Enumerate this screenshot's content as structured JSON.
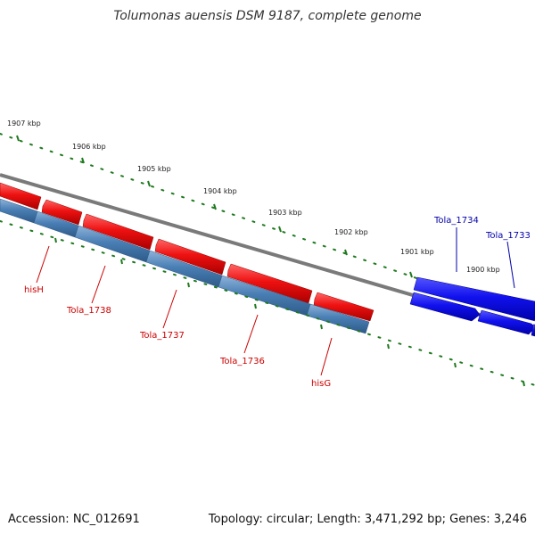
{
  "title": "Tolumonas auensis DSM 9187, complete genome",
  "footer": {
    "accession": "Accession: NC_012691",
    "summary": "Topology: circular; Length: 3,471,292 bp; Genes: 3,246"
  },
  "colors": {
    "backbone": "#808080",
    "tick": "#1f7a1f",
    "gene_red": "#ee1111",
    "cds_steelblue": "#4a7fb5",
    "gene_blue": "#1111ee",
    "label_red": "#cc0000",
    "label_blue": "#0000aa"
  },
  "kbp_labels": [
    "1907 kbp",
    "1906 kbp",
    "1905 kbp",
    "1904 kbp",
    "1903 kbp",
    "1902 kbp",
    "1901 kbp",
    "1900 kbp"
  ],
  "gene_labels": {
    "hisH": "hisH",
    "tola1738": "Tola_1738",
    "tola1737": "Tola_1737",
    "tola1736": "Tola_1736",
    "hisG": "hisG",
    "tola1734": "Tola_1734",
    "tola1733": "Tola_1733"
  }
}
